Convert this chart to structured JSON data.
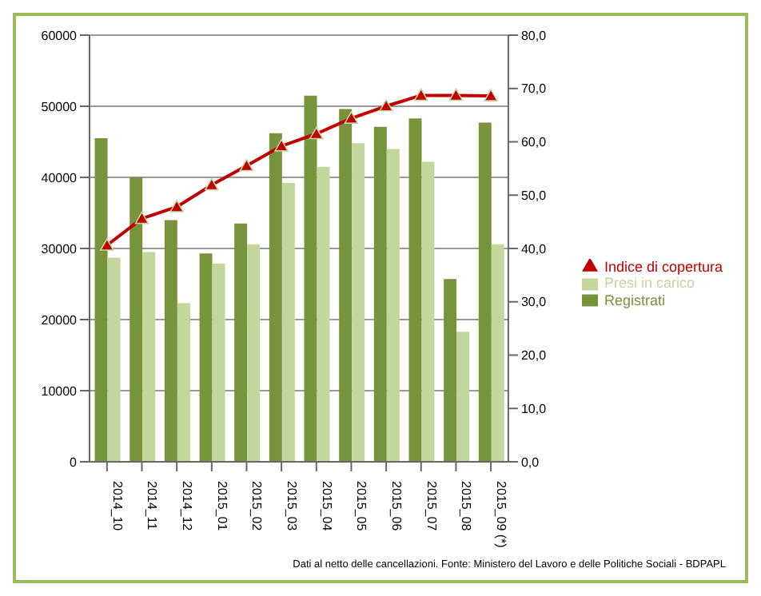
{
  "chart_data": {
    "type": "bar",
    "categories": [
      "2014_10",
      "2014_11",
      "2014_12",
      "2015_01",
      "2015_02",
      "2015_03",
      "2015_04",
      "2015_05",
      "2015_06",
      "2015_07",
      "2015_08",
      "2015_09 (*)"
    ],
    "series": [
      {
        "name": "Registrati",
        "color": "#77933c",
        "values": [
          45500,
          40000,
          34000,
          29300,
          33500,
          46200,
          51500,
          49600,
          47100,
          48300,
          25700,
          47700
        ]
      },
      {
        "name": "Presi in carico",
        "color": "#c3d69b",
        "values": [
          28700,
          29500,
          22300,
          27900,
          30600,
          39200,
          41500,
          44800,
          44000,
          42200,
          18300,
          30600
        ]
      },
      {
        "name": "Indice di copertura",
        "type": "line",
        "axis": "y2",
        "color": "#c00000",
        "marker": "triangle",
        "values": [
          40.6,
          45.6,
          47.8,
          51.9,
          55.5,
          59.2,
          61.5,
          64.4,
          66.7,
          68.7,
          68.7,
          68.6
        ]
      }
    ],
    "ylim": [
      0,
      60000
    ],
    "yticks": [
      0,
      10000,
      20000,
      30000,
      40000,
      50000,
      60000
    ],
    "y2lim": [
      0,
      80
    ],
    "y2ticks": [
      {
        "value": 0,
        "label": "0,0"
      },
      {
        "value": 10,
        "label": "10,0"
      },
      {
        "value": 20,
        "label": "20,0"
      },
      {
        "value": 30,
        "label": "30,0"
      },
      {
        "value": 40,
        "label": "40,0"
      },
      {
        "value": 50,
        "label": "50,0"
      },
      {
        "value": 60,
        "label": "60,0"
      },
      {
        "value": 70,
        "label": "70,0"
      },
      {
        "value": 80,
        "label": "80,0"
      }
    ],
    "grid": "y",
    "legend": "right",
    "annotations": [
      "Dati al netto delle cancellazioni. Fonte: Ministero del Lavoro e delle Politiche Sociali - BDPAPL"
    ]
  }
}
